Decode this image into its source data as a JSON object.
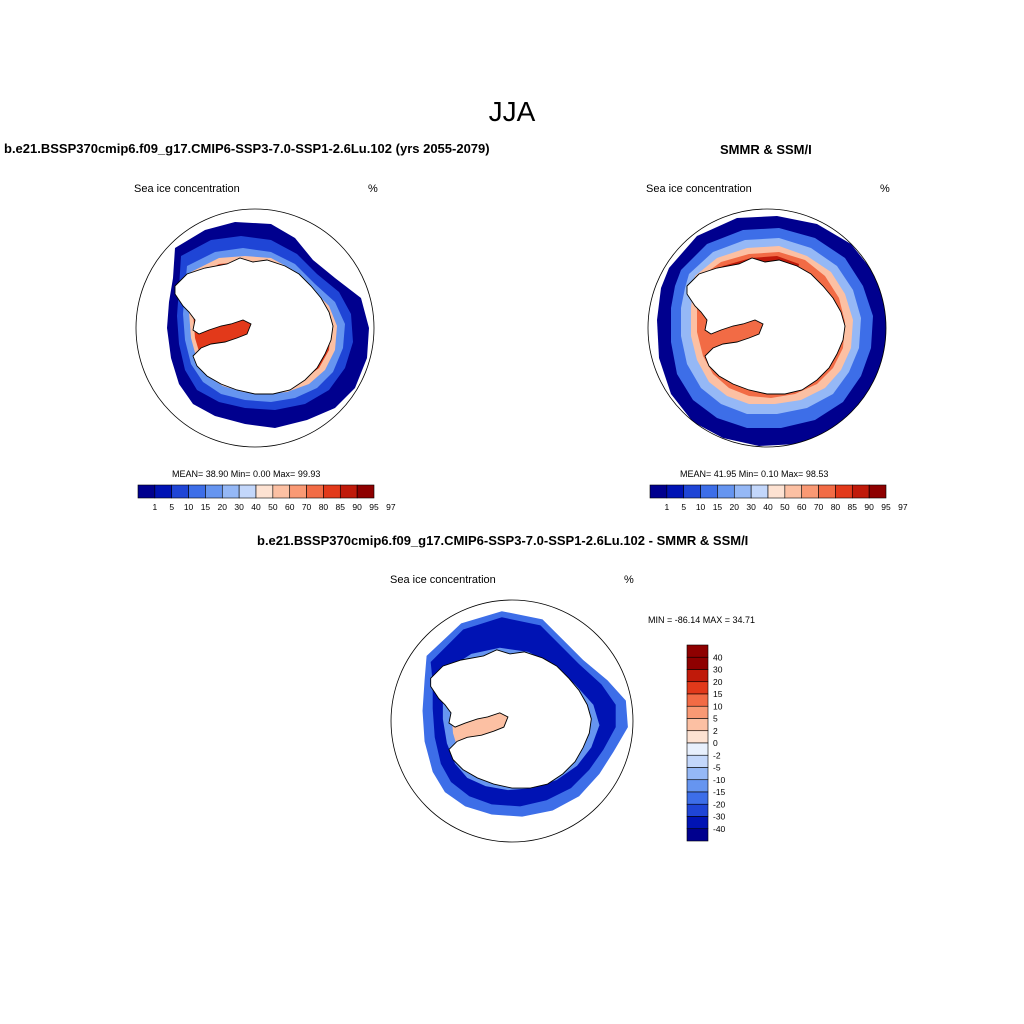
{
  "season": "JJA",
  "colors": {
    "scale": [
      "#00008e",
      "#0013b4",
      "#1f45d6",
      "#3d6ee8",
      "#6695f0",
      "#95b8f6",
      "#c3d7fb",
      "#fde2d2",
      "#fcc0a3",
      "#f99974",
      "#f26b45",
      "#e2391a",
      "#c01a0a",
      "#8e0000"
    ],
    "diff_scale": [
      "#00008e",
      "#0013b4",
      "#1f45d6",
      "#3d6ee8",
      "#6695f0",
      "#95b8f6",
      "#c3d7fb",
      "#e8f0fd",
      "#fde2d2",
      "#fcc0a3",
      "#f99974",
      "#f26b45",
      "#e2391a",
      "#c01a0a",
      "#8e0000"
    ],
    "land": "#ffffff",
    "coast": "#000000"
  },
  "panels": [
    {
      "title": "b.e21.BSSP370cmip6.f09_g17.CMIP6-SSP3-7.0-SSP1-2.6Lu.102 (yrs 2055-2079)",
      "variable": "Sea ice concentration",
      "units": "%",
      "stats": "MEAN=  38.90  Min=   0.00  Max=  99.93"
    },
    {
      "title": "SMMR & SSM/I",
      "variable": "Sea ice concentration",
      "units": "%",
      "stats": "MEAN=  41.95  Min=   0.10  Max=  98.53"
    },
    {
      "title": "b.e21.BSSP370cmip6.f09_g17.CMIP6-SSP3-7.0-SSP1-2.6Lu.102 - SMMR & SSM/I",
      "variable": "Sea ice concentration",
      "units": "%",
      "stats": "MIN = -86.14 MAX =  34.71"
    }
  ],
  "colorbar_labels": [
    "1",
    "5",
    "10",
    "15",
    "20",
    "30",
    "40",
    "50",
    "60",
    "70",
    "80",
    "85",
    "90",
    "95",
    "97"
  ],
  "diff_colorbar_labels": [
    "40",
    "30",
    "20",
    "15",
    "10",
    "5",
    "2",
    "0",
    "-2",
    "-5",
    "-10",
    "-15",
    "-20",
    "-30",
    "-40"
  ]
}
